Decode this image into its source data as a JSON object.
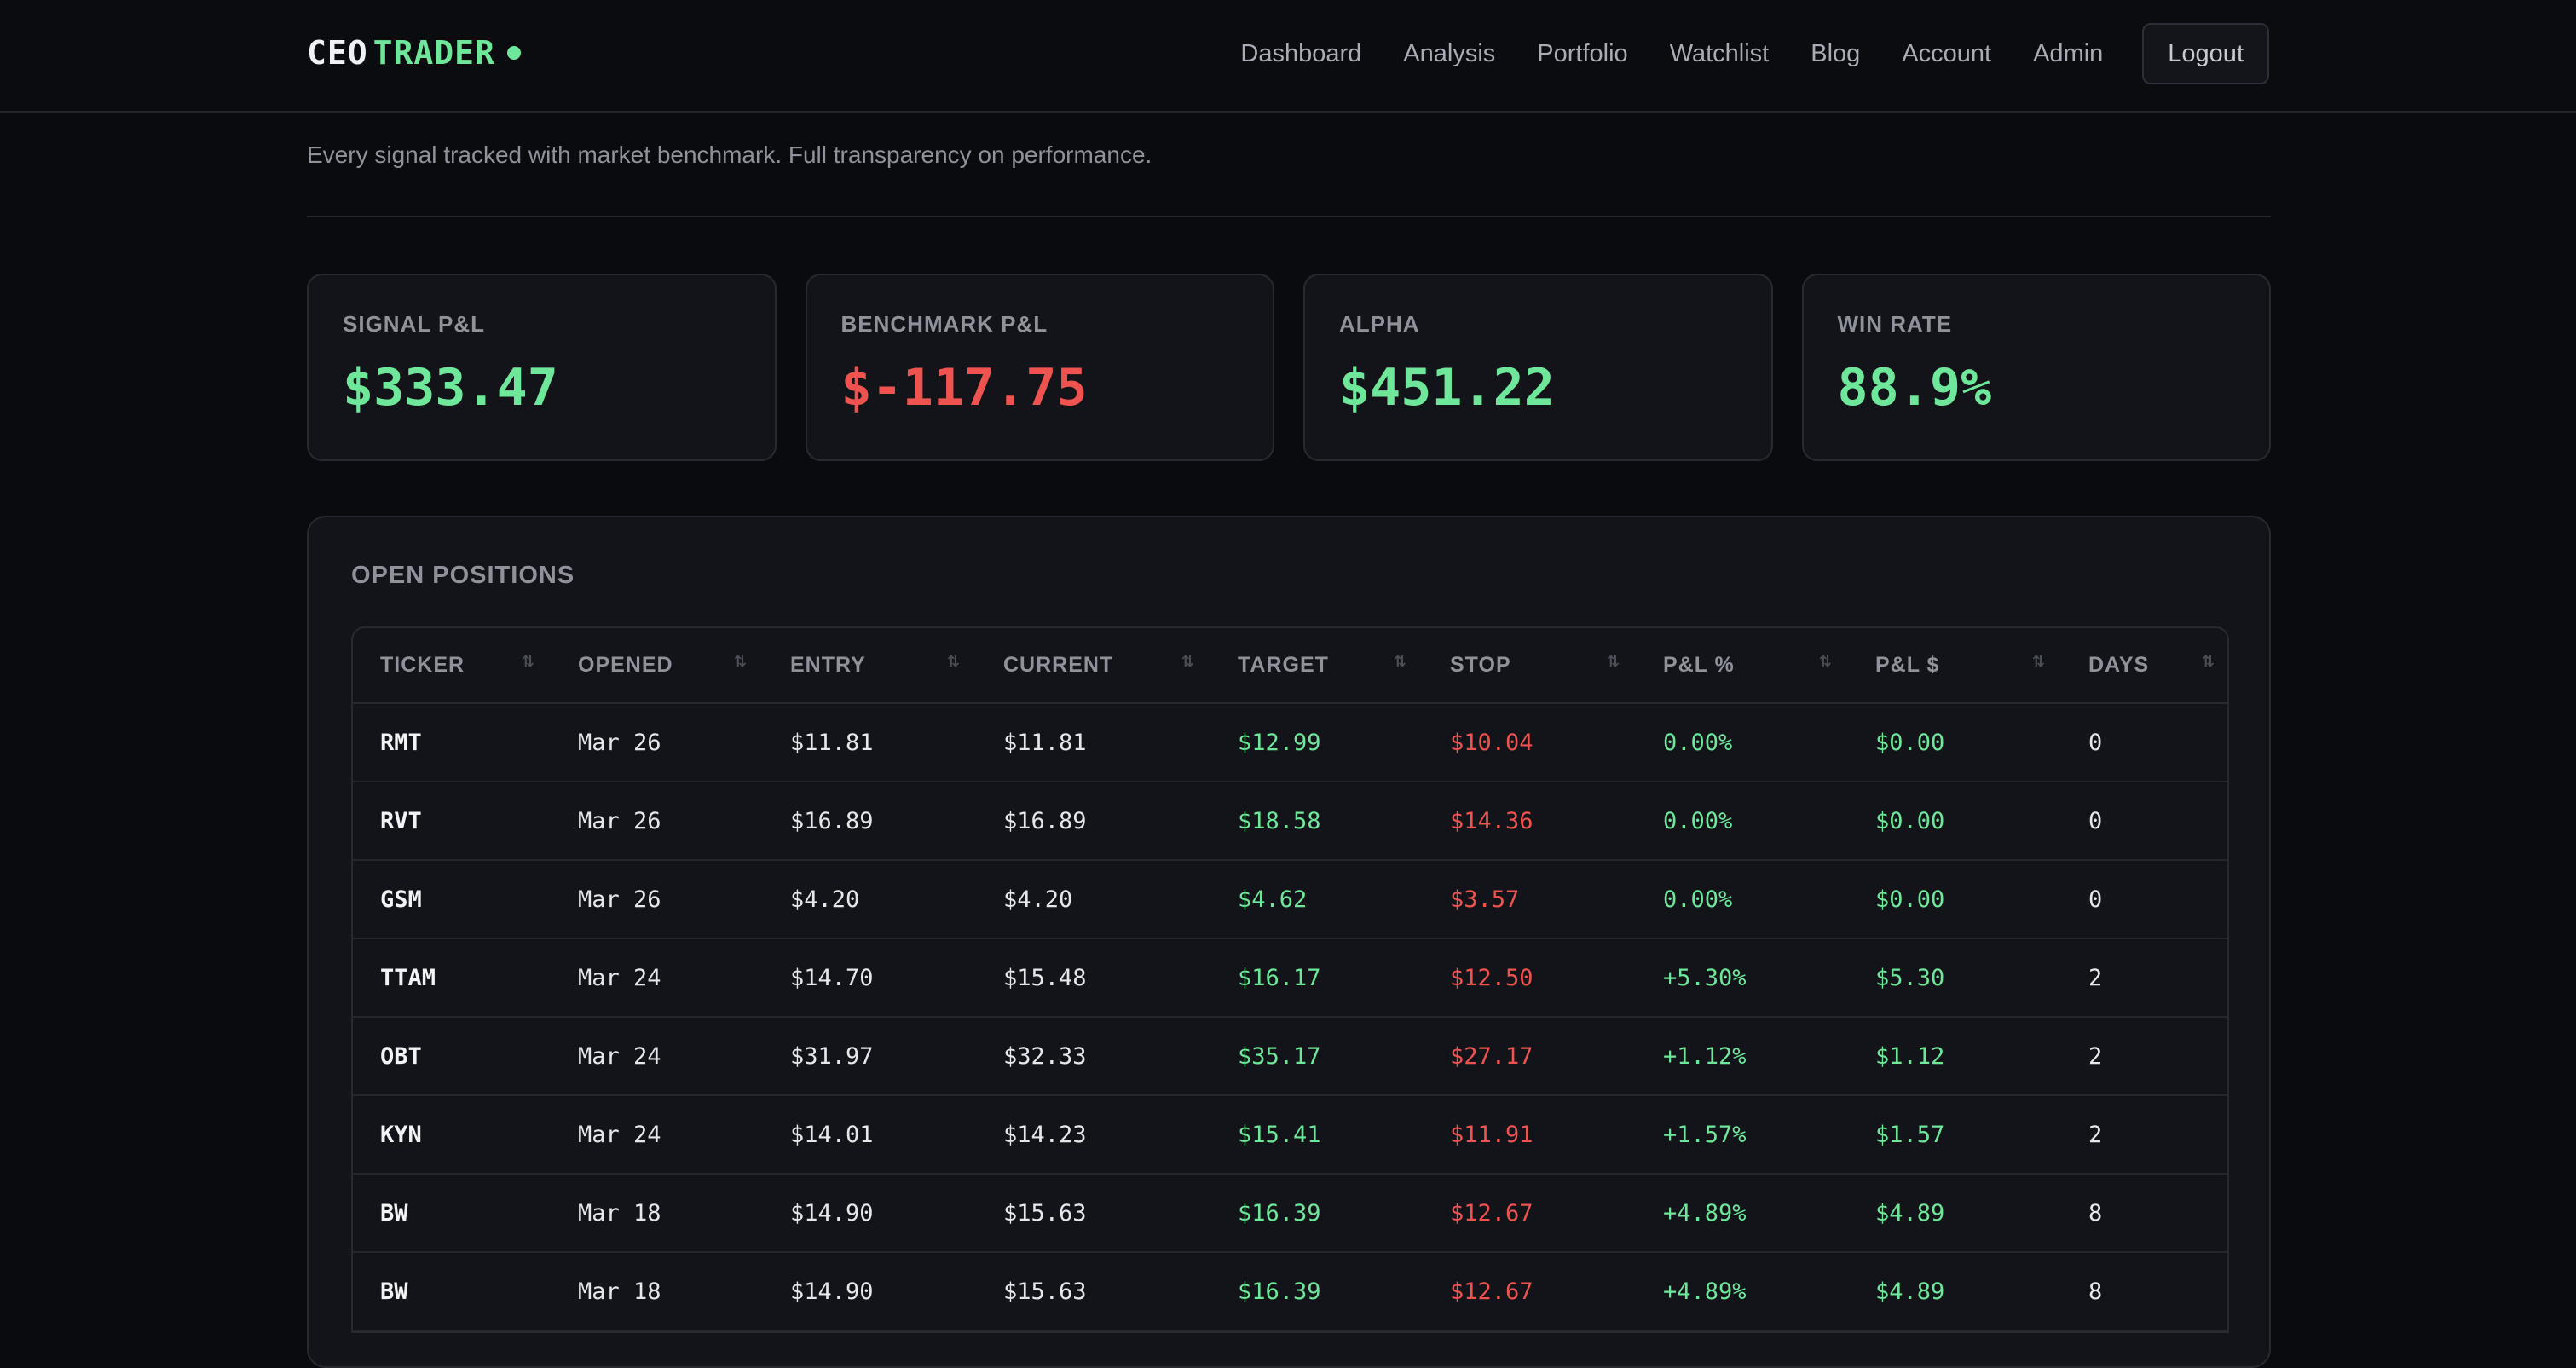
{
  "header": {
    "logo_part1": "CEO",
    "logo_part2": "TRADER",
    "nav": [
      "Dashboard",
      "Analysis",
      "Portfolio",
      "Watchlist",
      "Blog",
      "Account",
      "Admin"
    ],
    "logout_label": "Logout"
  },
  "subtitle": "Every signal tracked with market benchmark. Full transparency on performance.",
  "stats": [
    {
      "label": "SIGNAL P&L",
      "value": "$333.47",
      "tone": "pos"
    },
    {
      "label": "BENCHMARK P&L",
      "value": "$-117.75",
      "tone": "neg"
    },
    {
      "label": "ALPHA",
      "value": "$451.22",
      "tone": "pos"
    },
    {
      "label": "WIN RATE",
      "value": "88.9%",
      "tone": "pos"
    }
  ],
  "positions": {
    "title": "OPEN POSITIONS",
    "columns": [
      "TICKER",
      "OPENED",
      "ENTRY",
      "CURRENT",
      "TARGET",
      "STOP",
      "P&L %",
      "P&L $",
      "DAYS"
    ],
    "rows": [
      [
        "RMT",
        "Mar 26",
        "$11.81",
        "$11.81",
        "$12.99",
        "$10.04",
        "0.00%",
        "$0.00",
        "0"
      ],
      [
        "RVT",
        "Mar 26",
        "$16.89",
        "$16.89",
        "$18.58",
        "$14.36",
        "0.00%",
        "$0.00",
        "0"
      ],
      [
        "GSM",
        "Mar 26",
        "$4.20",
        "$4.20",
        "$4.62",
        "$3.57",
        "0.00%",
        "$0.00",
        "0"
      ],
      [
        "TTAM",
        "Mar 24",
        "$14.70",
        "$15.48",
        "$16.17",
        "$12.50",
        "+5.30%",
        "$5.30",
        "2"
      ],
      [
        "OBT",
        "Mar 24",
        "$31.97",
        "$32.33",
        "$35.17",
        "$27.17",
        "+1.12%",
        "$1.12",
        "2"
      ],
      [
        "KYN",
        "Mar 24",
        "$14.01",
        "$14.23",
        "$15.41",
        "$11.91",
        "+1.57%",
        "$1.57",
        "2"
      ],
      [
        "BW",
        "Mar 18",
        "$14.90",
        "$15.63",
        "$16.39",
        "$12.67",
        "+4.89%",
        "$4.89",
        "8"
      ],
      [
        "BW",
        "Mar 18",
        "$14.90",
        "$15.63",
        "$16.39",
        "$12.67",
        "+4.89%",
        "$4.89",
        "8"
      ]
    ]
  },
  "colors": {
    "accent": "#6ee79a",
    "negative": "#ef5350",
    "background": "#0a0b0f"
  },
  "icons": {
    "sort": "sort-arrows-icon",
    "logo_dot": "status-dot-icon"
  }
}
